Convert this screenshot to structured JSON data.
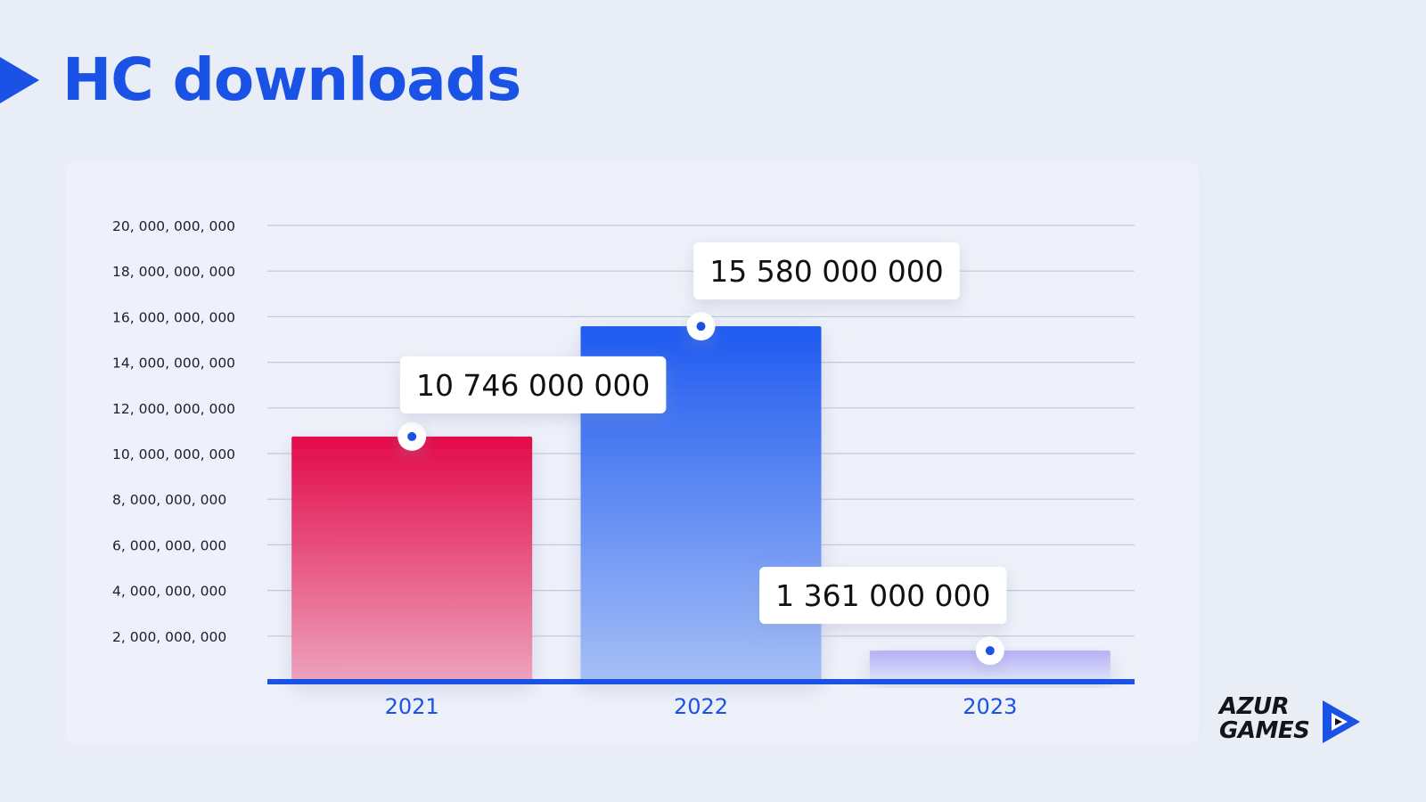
{
  "page": {
    "title": "HC downloads"
  },
  "brand": {
    "logo_line1": "AZUR",
    "logo_line2": "GAMES",
    "accent_color": "#1a52e6"
  },
  "chart_data": {
    "type": "bar",
    "title": "",
    "xlabel": "",
    "ylabel": "",
    "categories": [
      "2021",
      "2022",
      "2023"
    ],
    "values": [
      10746000000,
      15580000000,
      1361000000
    ],
    "value_labels": [
      "10 746 000 000",
      "15 580 000 000",
      "1 361 000 000"
    ],
    "ylim": [
      0,
      20000000000
    ],
    "yticks": [
      {
        "value": 2000000000,
        "label": "2, 000, 000, 000"
      },
      {
        "value": 4000000000,
        "label": "4, 000, 000, 000"
      },
      {
        "value": 6000000000,
        "label": "6, 000, 000, 000"
      },
      {
        "value": 8000000000,
        "label": "8, 000, 000, 000"
      },
      {
        "value": 10000000000,
        "label": "10, 000, 000, 000"
      },
      {
        "value": 12000000000,
        "label": "12, 000, 000, 000"
      },
      {
        "value": 14000000000,
        "label": "14, 000, 000, 000"
      },
      {
        "value": 16000000000,
        "label": "16, 000, 000, 000"
      },
      {
        "value": 18000000000,
        "label": "18, 000, 000, 000"
      },
      {
        "value": 20000000000,
        "label": "20, 000, 000, 000"
      }
    ],
    "grid": true,
    "bar_colors": [
      {
        "top": "#e20a4a",
        "bottom": "#eda3bd"
      },
      {
        "top": "#1f5af0",
        "bottom": "#a6bff6"
      },
      {
        "top": "#b7b0f6",
        "bottom": "#dfe3fb"
      }
    ],
    "axis_color": "#1a52e6",
    "grid_color": "#c5c9d5"
  }
}
